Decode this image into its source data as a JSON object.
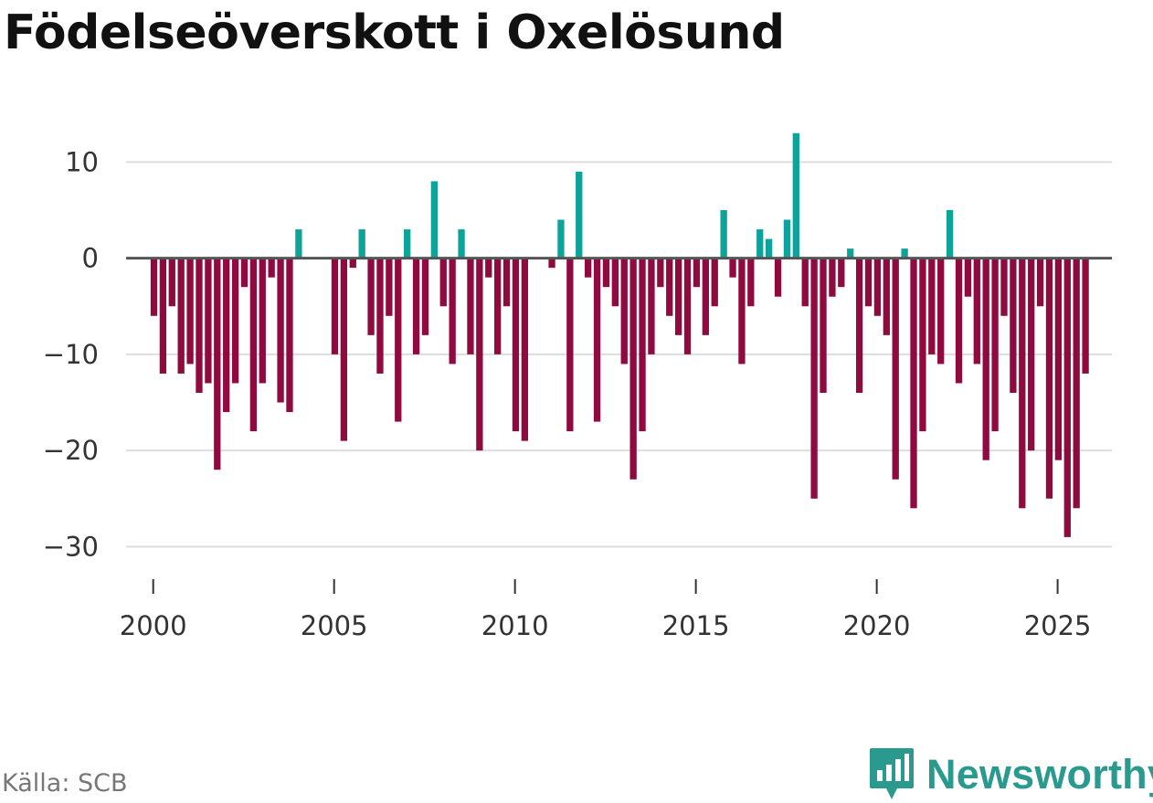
{
  "title": "Födelseöverskott i Oxelösund",
  "source": "Källa: SCB",
  "brand": "Newsworthy",
  "colors": {
    "positive": "#0ea39a",
    "negative": "#8e0a3f",
    "grid": "#dddddd",
    "zero": "#555555",
    "brand": "#2a9a8e"
  },
  "chart_data": {
    "type": "bar",
    "title": "Födelseöverskott i Oxelösund",
    "xlabel": "",
    "ylabel": "",
    "ylim": [
      -33,
      14.5
    ],
    "xlim": [
      1999.25,
      2026.5
    ],
    "yticks": [
      10,
      0,
      -10,
      -20,
      -30
    ],
    "ytick_labels": [
      "10",
      "0",
      "−10",
      "−20",
      "−30"
    ],
    "xticks": [
      2000,
      2005,
      2010,
      2015,
      2020,
      2025
    ],
    "xtick_labels": [
      "2000",
      "2005",
      "2010",
      "2015",
      "2020",
      "2025"
    ],
    "start_year": 2000,
    "start_month": 1,
    "period": "quarterly",
    "values": [
      -6,
      -12,
      -5,
      -12,
      -11,
      -14,
      -13,
      -22,
      -16,
      -13,
      -3,
      -18,
      -13,
      -2,
      -15,
      -16,
      3,
      0,
      0,
      0,
      -10,
      -19,
      -1,
      3,
      -8,
      -12,
      -6,
      -17,
      3,
      -10,
      -8,
      8,
      -5,
      -11,
      3,
      -10,
      -20,
      -2,
      -10,
      -5,
      -18,
      -19,
      0,
      0,
      -1,
      4,
      -18,
      9,
      -2,
      -17,
      -3,
      -5,
      -11,
      -23,
      -18,
      -10,
      -3,
      -6,
      -8,
      -10,
      -3,
      -8,
      -5,
      5,
      -2,
      -11,
      -5,
      3,
      2,
      -4,
      4,
      13,
      -5,
      -25,
      -14,
      -4,
      -3,
      1,
      -14,
      -5,
      -6,
      -8,
      -23,
      1,
      -26,
      -18,
      -10,
      -11,
      5,
      -13,
      -4,
      -11,
      -21,
      -18,
      -6,
      -14,
      -26,
      -20,
      -5,
      -25,
      -21,
      -29,
      -26,
      -12
    ]
  }
}
